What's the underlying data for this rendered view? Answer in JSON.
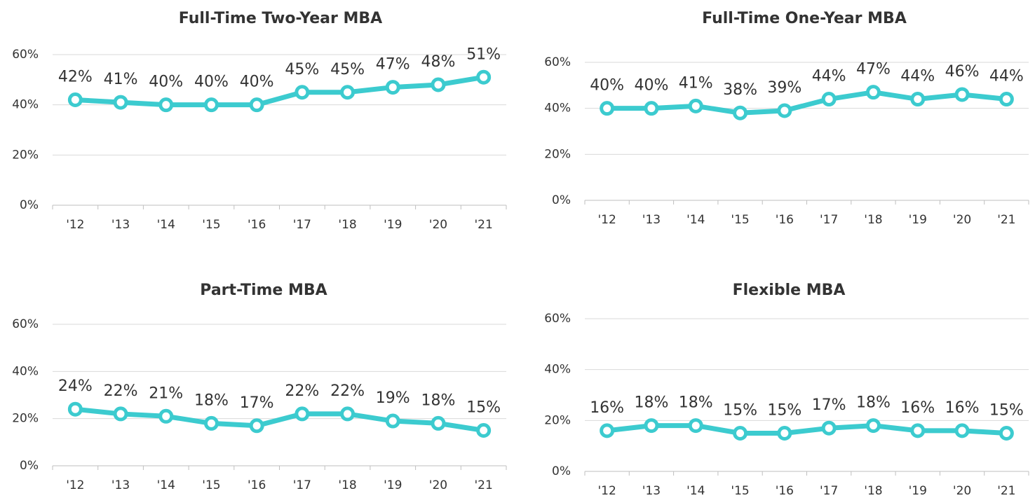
{
  "chart_data": [
    {
      "type": "line",
      "title": "Full-Time Two-Year MBA",
      "categories": [
        "'12",
        "'13",
        "'14",
        "'15",
        "'16",
        "'17",
        "'18",
        "'19",
        "'20",
        "'21"
      ],
      "values": [
        42,
        41,
        40,
        40,
        40,
        45,
        45,
        47,
        48,
        51
      ],
      "value_labels": [
        "42%",
        "41%",
        "40%",
        "40%",
        "40%",
        "45%",
        "45%",
        "47%",
        "48%",
        "51%"
      ],
      "color": "#3ccbcf",
      "ylim": [
        0,
        60
      ],
      "yticks": [
        {
          "value": 0,
          "label": "0%"
        },
        {
          "value": 20,
          "label": "20%"
        },
        {
          "value": 40,
          "label": "40%"
        },
        {
          "value": 60,
          "label": "60%"
        }
      ],
      "grid": true
    },
    {
      "type": "line",
      "title": "Full-Time One-Year MBA",
      "categories": [
        "'12",
        "'13",
        "'14",
        "'15",
        "'16",
        "'17",
        "'18",
        "'19",
        "'20",
        "'21"
      ],
      "values": [
        40,
        40,
        41,
        38,
        39,
        44,
        47,
        44,
        46,
        44
      ],
      "value_labels": [
        "40%",
        "40%",
        "41%",
        "38%",
        "39%",
        "44%",
        "47%",
        "44%",
        "46%",
        "44%"
      ],
      "color": "#3ccbcf",
      "ylim": [
        0,
        60
      ],
      "yticks": [
        {
          "value": 0,
          "label": "0%"
        },
        {
          "value": 20,
          "label": "20%"
        },
        {
          "value": 40,
          "label": "40%"
        },
        {
          "value": 60,
          "label": "60%"
        }
      ],
      "grid": true
    },
    {
      "type": "line",
      "title": "Part-Time MBA",
      "categories": [
        "'12",
        "'13",
        "'14",
        "'15",
        "'16",
        "'17",
        "'18",
        "'19",
        "'20",
        "'21"
      ],
      "values": [
        24,
        22,
        21,
        18,
        17,
        22,
        22,
        19,
        18,
        15
      ],
      "value_labels": [
        "24%",
        "22%",
        "21%",
        "18%",
        "17%",
        "22%",
        "22%",
        "19%",
        "18%",
        "15%"
      ],
      "color": "#3ccbcf",
      "ylim": [
        0,
        60
      ],
      "yticks": [
        {
          "value": 0,
          "label": "0%"
        },
        {
          "value": 20,
          "label": "20%"
        },
        {
          "value": 40,
          "label": "40%"
        },
        {
          "value": 60,
          "label": "60%"
        }
      ],
      "grid": true
    },
    {
      "type": "line",
      "title": "Flexible MBA",
      "categories": [
        "'12",
        "'13",
        "'14",
        "'15",
        "'16",
        "'17",
        "'18",
        "'19",
        "'20",
        "'21"
      ],
      "values": [
        16,
        18,
        18,
        15,
        15,
        17,
        18,
        16,
        16,
        15
      ],
      "value_labels": [
        "16%",
        "18%",
        "18%",
        "15%",
        "15%",
        "17%",
        "18%",
        "16%",
        "16%",
        "15%"
      ],
      "color": "#3ccbcf",
      "ylim": [
        0,
        60
      ],
      "yticks": [
        {
          "value": 0,
          "label": "0%"
        },
        {
          "value": 20,
          "label": "20%"
        },
        {
          "value": 40,
          "label": "40%"
        },
        {
          "value": 60,
          "label": "60%"
        }
      ],
      "grid": true
    }
  ]
}
